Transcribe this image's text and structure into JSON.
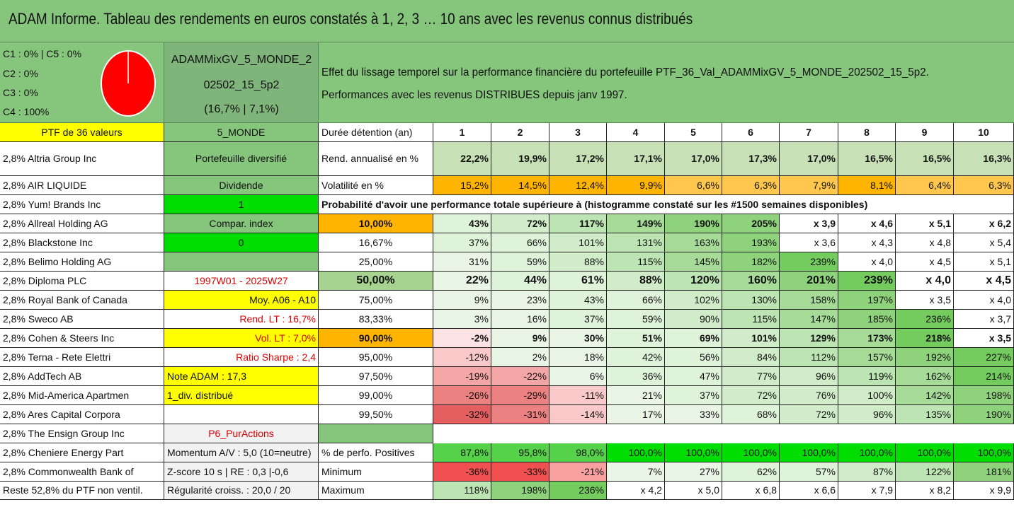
{
  "title": "ADAM Informe. Tableau des rendements en euros constatés à 1, 2, 3 … 10 ans avec les revenus connus distribués",
  "composition": {
    "lines": [
      "C1 : 0% | C5 : 0%",
      "C2 : 0%",
      "C3 : 0%",
      "C4 : 100%"
    ],
    "pie": [
      {
        "label": "C4",
        "value": 100,
        "color": "#ff0000"
      }
    ]
  },
  "portfolio": {
    "name_line1": "ADAMMixGV_5_MONDE_2",
    "name_line2": "02502_15_5p2",
    "name_line3": "(16,7% | 7,1%)",
    "description_line1": "Effet du lissage temporel sur la performance financière du portefeuille PTF_36_Val_ADAMMixGV_5_MONDE_202502_15_5p2.",
    "description_line2": "Performances avec les revenus DISTRIBUES depuis janv 1997."
  },
  "left_column": {
    "header": "PTF de 36 valeurs",
    "holdings": [
      "2,8% Altria Group Inc",
      "2,8% AIR LIQUIDE",
      "2,8% Yum! Brands Inc",
      "2,8% Allreal Holding AG",
      "2,8% Blackstone Inc",
      "2,8% Belimo Holding AG",
      "2,8% Diploma PLC",
      "2,8% Royal Bank of Canada",
      "2,8% Sweco AB",
      "2,8% Cohen & Steers Inc",
      "2,8% Terna - Rete Elettri",
      "2,8% AddTech AB",
      "2,8% Mid-America Apartmen",
      "2,8% Ares Capital Corpora",
      "2,8% The Ensign Group Inc",
      "2,8% Cheniere Energy Part",
      "2,8% Commonwealth Bank of",
      "Reste 52,8% du PTF non ventil."
    ]
  },
  "info_column": {
    "header": "5_MONDE",
    "items": [
      "Portefeuille diversifié",
      "Dividende",
      "1",
      "Compar. index",
      "0",
      "",
      "1997W01 - 2025W27",
      "Moy. A06 - A10",
      "Rend. LT : 16,7%",
      "Vol. LT : 7,0%",
      "Ratio Sharpe : 2,4",
      "Note ADAM : 17,3",
      "1_div. distribué",
      "",
      "P6_PurActions",
      "Momentum A/V : 5,0 (10=neutre)",
      "Z-score 10 s | RE : 0,3 |-0,6",
      "Régularité croiss. : 20,0 / 20"
    ]
  },
  "table": {
    "duration_label": "Durée détention (an)",
    "years": [
      "1",
      "2",
      "3",
      "4",
      "5",
      "6",
      "7",
      "8",
      "9",
      "10"
    ],
    "rend_label": "Rend. annualisé en %",
    "rend": [
      "22,2%",
      "19,9%",
      "17,2%",
      "17,1%",
      "17,0%",
      "17,3%",
      "17,0%",
      "16,5%",
      "16,5%",
      "16,3%"
    ],
    "vol_label": "Volatilité en %",
    "vol": [
      "15,2%",
      "14,5%",
      "12,4%",
      "9,9%",
      "6,6%",
      "6,3%",
      "7,9%",
      "8,1%",
      "6,4%",
      "6,3%"
    ],
    "prob_title": "Probabilité d'avoir une performance totale supérieure à (histogramme constaté sur les #1500 semaines disponibles)",
    "quantiles": [
      {
        "q": "10,00%",
        "v": [
          "43%",
          "72%",
          "117%",
          "149%",
          "190%",
          "205%",
          "x 3,9",
          "x 4,6",
          "x 5,1",
          "x 6,2"
        ]
      },
      {
        "q": "16,67%",
        "v": [
          "37%",
          "66%",
          "101%",
          "131%",
          "163%",
          "193%",
          "x 3,6",
          "x 4,3",
          "x 4,8",
          "x 5,4"
        ]
      },
      {
        "q": "25,00%",
        "v": [
          "31%",
          "59%",
          "88%",
          "115%",
          "145%",
          "182%",
          "239%",
          "x 4,0",
          "x 4,5",
          "x 5,1"
        ]
      },
      {
        "q": "50,00%",
        "v": [
          "22%",
          "44%",
          "61%",
          "88%",
          "120%",
          "160%",
          "201%",
          "239%",
          "x 4,0",
          "x 4,5"
        ]
      },
      {
        "q": "75,00%",
        "v": [
          "9%",
          "23%",
          "43%",
          "66%",
          "102%",
          "130%",
          "158%",
          "197%",
          "x 3,5",
          "x 4,0"
        ]
      },
      {
        "q": "83,33%",
        "v": [
          "3%",
          "16%",
          "37%",
          "59%",
          "90%",
          "115%",
          "147%",
          "185%",
          "236%",
          "x 3,7"
        ]
      },
      {
        "q": "90,00%",
        "v": [
          "-2%",
          "9%",
          "30%",
          "51%",
          "69%",
          "101%",
          "129%",
          "173%",
          "218%",
          "x 3,5"
        ]
      },
      {
        "q": "95,00%",
        "v": [
          "-12%",
          "2%",
          "18%",
          "42%",
          "56%",
          "84%",
          "112%",
          "157%",
          "192%",
          "227%"
        ]
      },
      {
        "q": "97,50%",
        "v": [
          "-19%",
          "-22%",
          "6%",
          "36%",
          "47%",
          "77%",
          "96%",
          "119%",
          "162%",
          "214%"
        ]
      },
      {
        "q": "99,00%",
        "v": [
          "-26%",
          "-29%",
          "-11%",
          "21%",
          "37%",
          "72%",
          "76%",
          "100%",
          "142%",
          "198%"
        ]
      },
      {
        "q": "99,50%",
        "v": [
          "-32%",
          "-31%",
          "-14%",
          "17%",
          "33%",
          "68%",
          "72%",
          "96%",
          "135%",
          "190%"
        ]
      }
    ],
    "pos_label": "% de perfo. Positives",
    "pos": [
      "87,8%",
      "95,8%",
      "98,0%",
      "100,0%",
      "100,0%",
      "100,0%",
      "100,0%",
      "100,0%",
      "100,0%",
      "100,0%"
    ],
    "min_label": "Minimum",
    "min": [
      "-36%",
      "-33%",
      "-21%",
      "7%",
      "27%",
      "62%",
      "57%",
      "87%",
      "122%",
      "181%"
    ],
    "max_label": "Maximum",
    "max": [
      "118%",
      "198%",
      "236%",
      "x 4,2",
      "x 5,0",
      "x 6,8",
      "x 6,6",
      "x 7,9",
      "x 8,2",
      "x 9,9"
    ]
  },
  "colors": {
    "header_green": "#86c57c",
    "yellow": "#ffff00",
    "bright_green": "#00dd00",
    "orange": "#ffb400",
    "red_text": "#dd0000",
    "pie_red": "#ff0000"
  }
}
